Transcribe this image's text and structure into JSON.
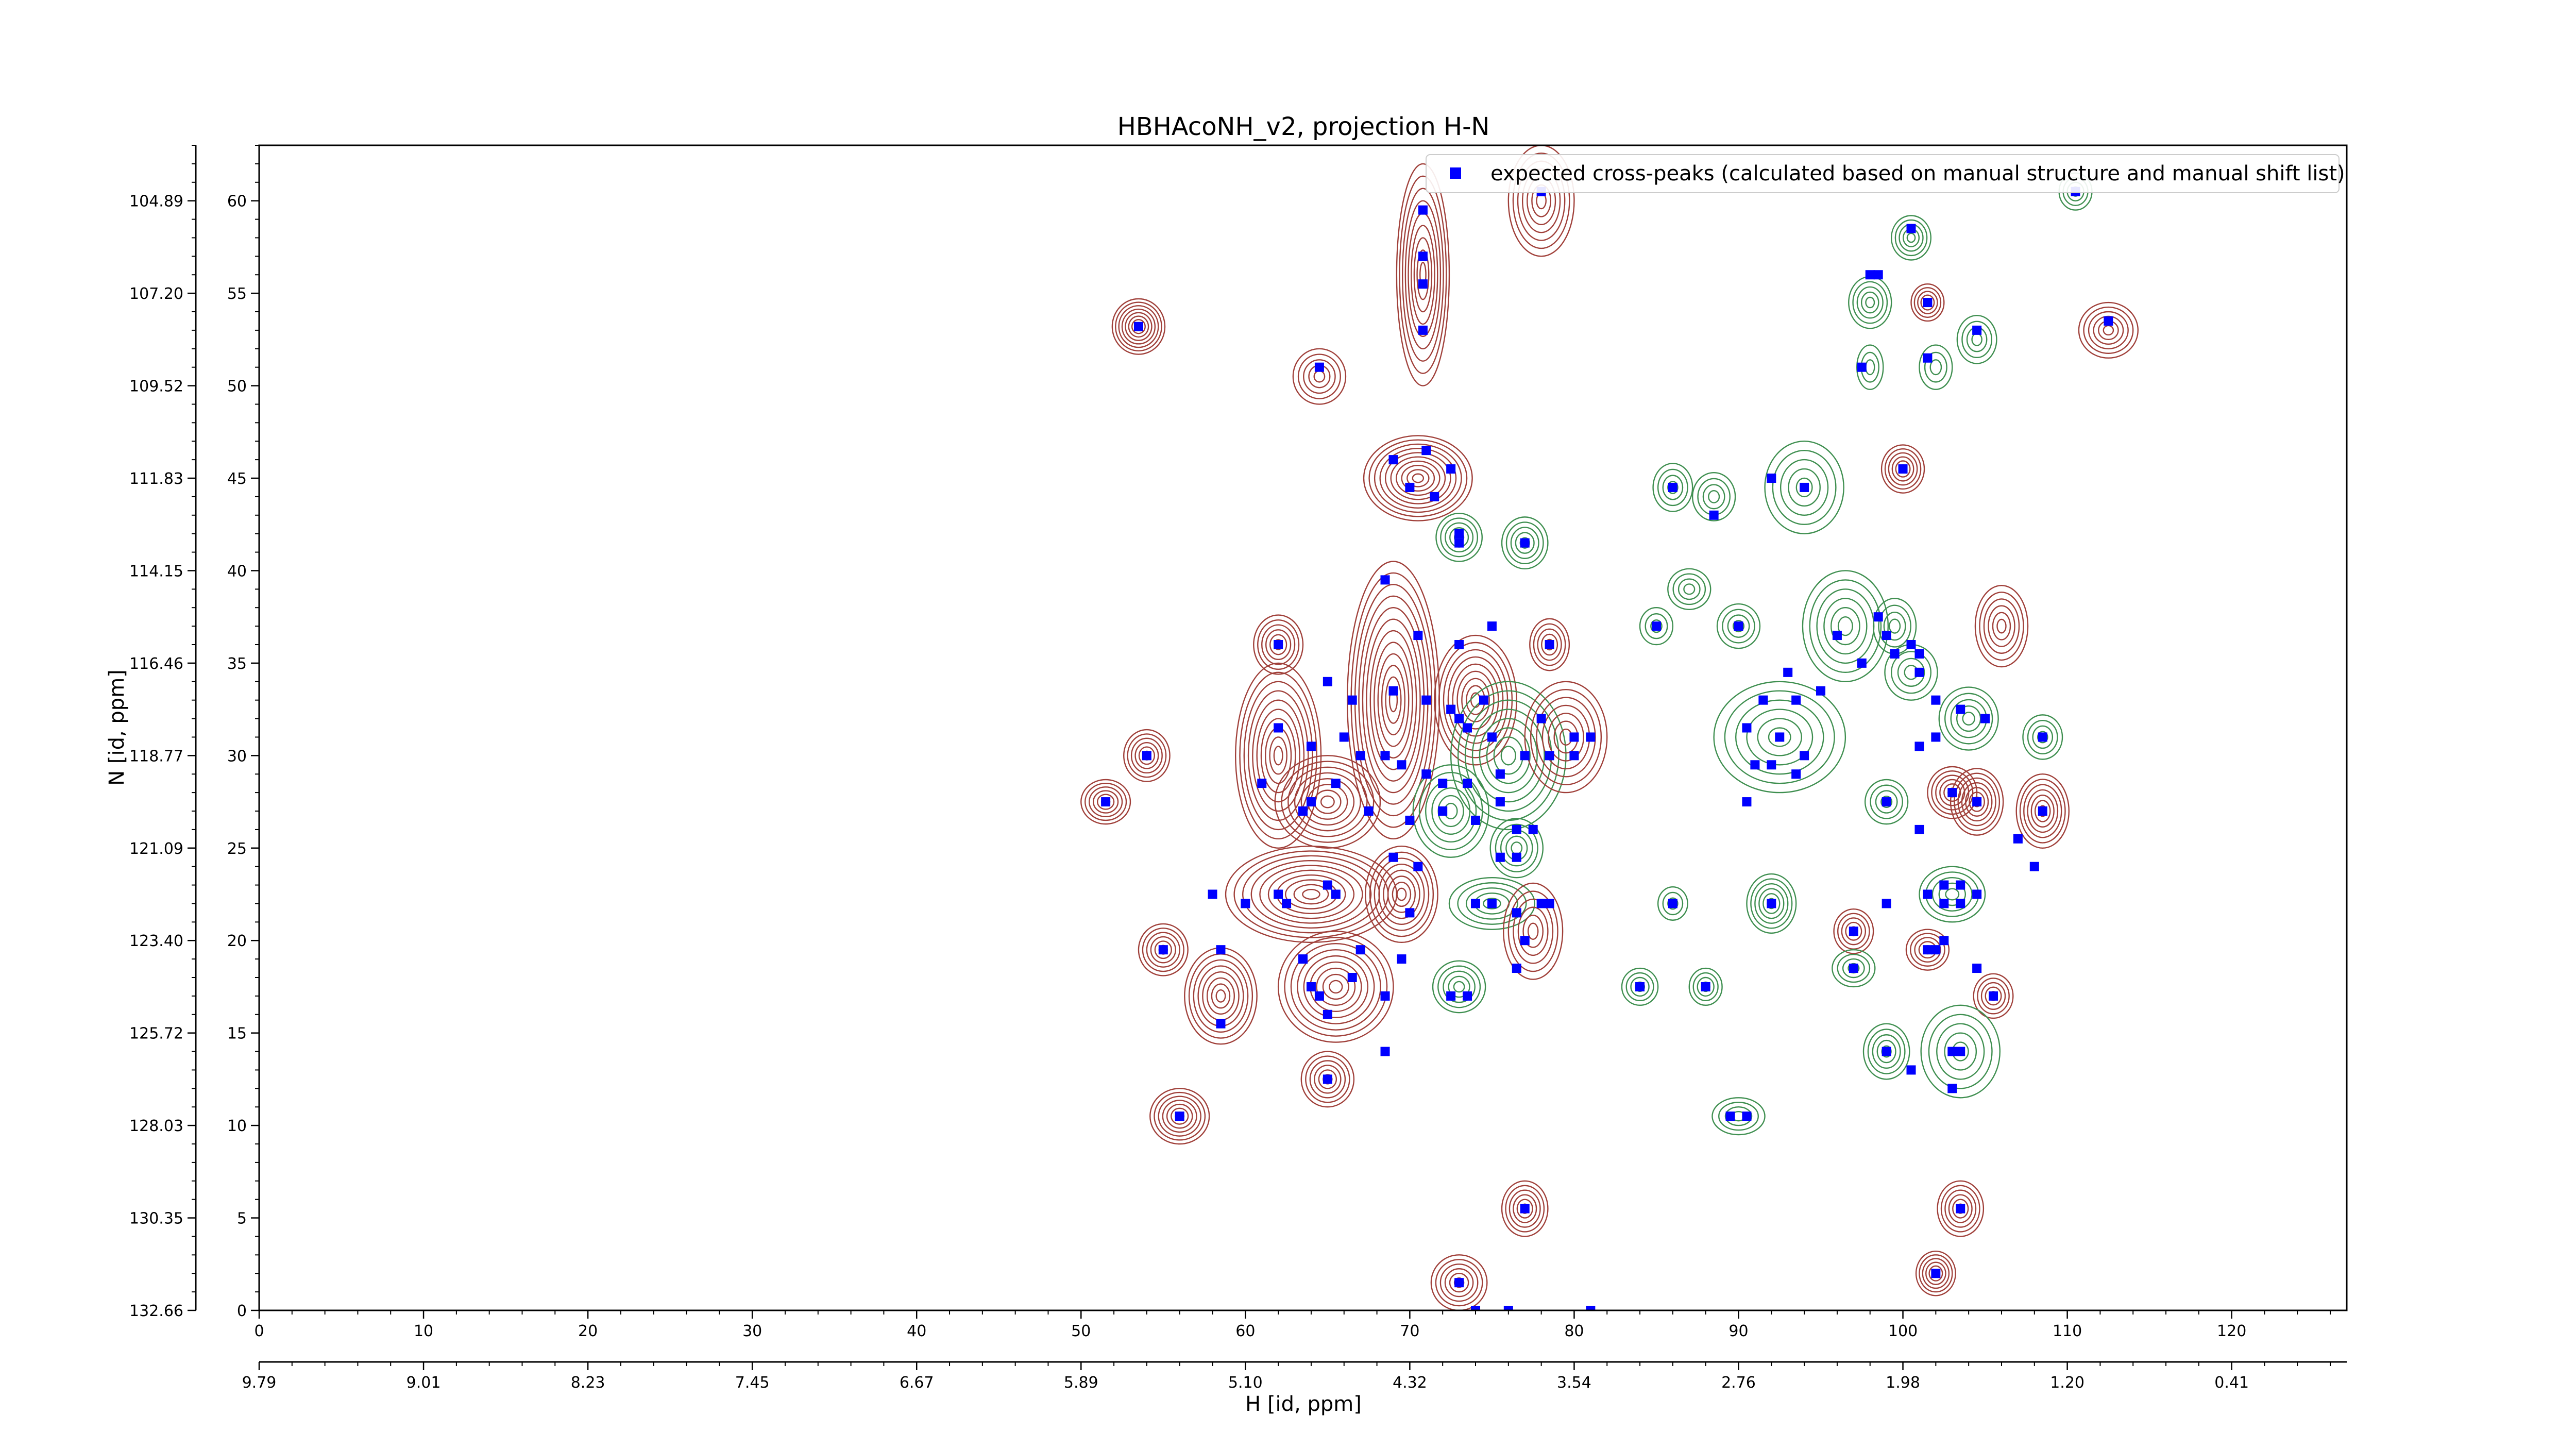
{
  "chart_data": {
    "type": "scatter",
    "title": "HBHAcoNH_v2, projection H-N",
    "xlabel": "H [id, ppm]",
    "ylabel": "N [id, ppm]",
    "xlim": [
      0,
      127
    ],
    "ylim": [
      0,
      63
    ],
    "x_ticks": [
      0,
      10,
      20,
      30,
      40,
      50,
      60,
      70,
      80,
      90,
      100,
      110,
      120
    ],
    "y_ticks": [
      0,
      5,
      10,
      15,
      20,
      25,
      30,
      35,
      40,
      45,
      50,
      55,
      60
    ],
    "x_ppm_ticks": [
      "9.79",
      "9.01",
      "8.23",
      "7.45",
      "6.67",
      "5.89",
      "5.10",
      "4.32",
      "3.54",
      "2.76",
      "1.98",
      "1.20",
      "0.41"
    ],
    "y_ppm_ticks": [
      "132.66",
      "130.35",
      "128.03",
      "125.72",
      "123.40",
      "121.09",
      "118.77",
      "116.46",
      "114.15",
      "111.83",
      "109.52",
      "107.20",
      "104.89"
    ],
    "grid": false,
    "legend_position": "top-right",
    "legend_label": "expected cross-peaks (calculated based on manual structure and manual shift list)",
    "colors": {
      "positive_contour": "#a0403a",
      "negative_contour": "#3f8f50",
      "peak_marker": "#0000ff"
    },
    "contour_groups": [
      {
        "sign": "pos",
        "x": 53.5,
        "y": 53.2,
        "rx": 1.6,
        "ry": 1.5,
        "levels": 8
      },
      {
        "sign": "pos",
        "x": 70.8,
        "y": 56.0,
        "rx": 1.6,
        "ry": 6.0,
        "levels": 9
      },
      {
        "sign": "pos",
        "x": 78.0,
        "y": 60.0,
        "rx": 2.0,
        "ry": 3.0,
        "levels": 7
      },
      {
        "sign": "pos",
        "x": 64.5,
        "y": 50.5,
        "rx": 1.6,
        "ry": 1.5,
        "levels": 5
      },
      {
        "sign": "pos",
        "x": 70.5,
        "y": 45.0,
        "rx": 3.3,
        "ry": 2.3,
        "levels": 10
      },
      {
        "sign": "neg",
        "x": 73.0,
        "y": 41.8,
        "rx": 1.4,
        "ry": 1.3,
        "levels": 5
      },
      {
        "sign": "neg",
        "x": 77.0,
        "y": 41.5,
        "rx": 1.4,
        "ry": 1.4,
        "levels": 5
      },
      {
        "sign": "pos",
        "x": 62.0,
        "y": 30.0,
        "rx": 2.6,
        "ry": 5.0,
        "levels": 10
      },
      {
        "sign": "pos",
        "x": 69.0,
        "y": 33.0,
        "rx": 2.8,
        "ry": 7.5,
        "levels": 12
      },
      {
        "sign": "pos",
        "x": 74.0,
        "y": 33.0,
        "rx": 2.5,
        "ry": 3.5,
        "levels": 9
      },
      {
        "sign": "neg",
        "x": 76.0,
        "y": 30.0,
        "rx": 3.5,
        "ry": 4.0,
        "levels": 8
      },
      {
        "sign": "pos",
        "x": 79.5,
        "y": 31.0,
        "rx": 2.5,
        "ry": 3.0,
        "levels": 7
      },
      {
        "sign": "neg",
        "x": 72.5,
        "y": 27.0,
        "rx": 2.3,
        "ry": 2.5,
        "levels": 6
      },
      {
        "sign": "pos",
        "x": 65.0,
        "y": 27.5,
        "rx": 3.2,
        "ry": 2.5,
        "levels": 8
      },
      {
        "sign": "pos",
        "x": 62.0,
        "y": 36.0,
        "rx": 1.5,
        "ry": 1.6,
        "levels": 6
      },
      {
        "sign": "pos",
        "x": 54.0,
        "y": 30.0,
        "rx": 1.4,
        "ry": 1.4,
        "levels": 6
      },
      {
        "sign": "pos",
        "x": 51.5,
        "y": 27.5,
        "rx": 1.5,
        "ry": 1.2,
        "levels": 6
      },
      {
        "sign": "pos",
        "x": 78.5,
        "y": 36.0,
        "rx": 1.2,
        "ry": 1.4,
        "levels": 5
      },
      {
        "sign": "pos",
        "x": 64.0,
        "y": 22.5,
        "rx": 5.2,
        "ry": 2.6,
        "levels": 10
      },
      {
        "sign": "pos",
        "x": 55.0,
        "y": 19.5,
        "rx": 1.5,
        "ry": 1.4,
        "levels": 6
      },
      {
        "sign": "pos",
        "x": 58.5,
        "y": 17.0,
        "rx": 2.2,
        "ry": 2.6,
        "levels": 8
      },
      {
        "sign": "pos",
        "x": 65.5,
        "y": 17.5,
        "rx": 3.5,
        "ry": 3.0,
        "levels": 9
      },
      {
        "sign": "pos",
        "x": 69.5,
        "y": 22.5,
        "rx": 2.2,
        "ry": 2.6,
        "levels": 8
      },
      {
        "sign": "neg",
        "x": 73.0,
        "y": 17.5,
        "rx": 1.6,
        "ry": 1.4,
        "levels": 5
      },
      {
        "sign": "neg",
        "x": 75.0,
        "y": 22.0,
        "rx": 2.6,
        "ry": 1.4,
        "levels": 5
      },
      {
        "sign": "pos",
        "x": 77.5,
        "y": 20.5,
        "rx": 1.8,
        "ry": 2.6,
        "levels": 6
      },
      {
        "sign": "neg",
        "x": 76.5,
        "y": 25.0,
        "rx": 1.6,
        "ry": 1.6,
        "levels": 5
      },
      {
        "sign": "pos",
        "x": 65.0,
        "y": 12.5,
        "rx": 1.6,
        "ry": 1.5,
        "levels": 6
      },
      {
        "sign": "pos",
        "x": 56.0,
        "y": 10.5,
        "rx": 1.8,
        "ry": 1.5,
        "levels": 7
      },
      {
        "sign": "pos",
        "x": 77.0,
        "y": 5.5,
        "rx": 1.4,
        "ry": 1.5,
        "levels": 6
      },
      {
        "sign": "pos",
        "x": 73.0,
        "y": 1.5,
        "rx": 1.7,
        "ry": 1.5,
        "levels": 6
      },
      {
        "sign": "neg",
        "x": 87.0,
        "y": 39.0,
        "rx": 1.3,
        "ry": 1.1,
        "levels": 4
      },
      {
        "sign": "neg",
        "x": 85.0,
        "y": 37.0,
        "rx": 1.0,
        "ry": 1.0,
        "levels": 3
      },
      {
        "sign": "neg",
        "x": 90.0,
        "y": 37.0,
        "rx": 1.3,
        "ry": 1.2,
        "levels": 4
      },
      {
        "sign": "neg",
        "x": 96.5,
        "y": 37.0,
        "rx": 2.6,
        "ry": 3.0,
        "levels": 6
      },
      {
        "sign": "neg",
        "x": 92.5,
        "y": 31.0,
        "rx": 4.0,
        "ry": 3.0,
        "levels": 6
      },
      {
        "sign": "neg",
        "x": 88.5,
        "y": 44.0,
        "rx": 1.3,
        "ry": 1.3,
        "levels": 4
      },
      {
        "sign": "neg",
        "x": 86.0,
        "y": 44.5,
        "rx": 1.2,
        "ry": 1.3,
        "levels": 4
      },
      {
        "sign": "neg",
        "x": 94.0,
        "y": 44.5,
        "rx": 2.4,
        "ry": 2.5,
        "levels": 5
      },
      {
        "sign": "pos",
        "x": 100.0,
        "y": 45.5,
        "rx": 1.3,
        "ry": 1.3,
        "levels": 6
      },
      {
        "sign": "neg",
        "x": 99.5,
        "y": 37.0,
        "rx": 1.3,
        "ry": 1.5,
        "levels": 4
      },
      {
        "sign": "neg",
        "x": 100.5,
        "y": 34.5,
        "rx": 1.6,
        "ry": 1.5,
        "levels": 4
      },
      {
        "sign": "neg",
        "x": 104.0,
        "y": 32.0,
        "rx": 1.8,
        "ry": 1.7,
        "levels": 5
      },
      {
        "sign": "neg",
        "x": 108.5,
        "y": 31.0,
        "rx": 1.2,
        "ry": 1.2,
        "levels": 4
      },
      {
        "sign": "pos",
        "x": 106.0,
        "y": 37.0,
        "rx": 1.6,
        "ry": 2.2,
        "levels": 6
      },
      {
        "sign": "pos",
        "x": 103.0,
        "y": 28.0,
        "rx": 1.5,
        "ry": 1.4,
        "levels": 6
      },
      {
        "sign": "pos",
        "x": 104.5,
        "y": 27.5,
        "rx": 1.6,
        "ry": 1.8,
        "levels": 7
      },
      {
        "sign": "pos",
        "x": 108.5,
        "y": 27.0,
        "rx": 1.6,
        "ry": 2.0,
        "levels": 7
      },
      {
        "sign": "neg",
        "x": 99.0,
        "y": 27.5,
        "rx": 1.3,
        "ry": 1.2,
        "levels": 4
      },
      {
        "sign": "neg",
        "x": 103.0,
        "y": 22.5,
        "rx": 2.0,
        "ry": 1.5,
        "levels": 5
      },
      {
        "sign": "neg",
        "x": 92.0,
        "y": 22.0,
        "rx": 1.5,
        "ry": 1.6,
        "levels": 6
      },
      {
        "sign": "neg",
        "x": 86.0,
        "y": 22.0,
        "rx": 0.9,
        "ry": 0.9,
        "levels": 3
      },
      {
        "sign": "pos",
        "x": 97.0,
        "y": 20.5,
        "rx": 1.2,
        "ry": 1.2,
        "levels": 5
      },
      {
        "sign": "pos",
        "x": 101.5,
        "y": 19.5,
        "rx": 1.3,
        "ry": 1.1,
        "levels": 5
      },
      {
        "sign": "pos",
        "x": 105.5,
        "y": 17.0,
        "rx": 1.2,
        "ry": 1.2,
        "levels": 5
      },
      {
        "sign": "neg",
        "x": 97.0,
        "y": 18.5,
        "rx": 1.3,
        "ry": 1.0,
        "levels": 4
      },
      {
        "sign": "neg",
        "x": 84.0,
        "y": 17.5,
        "rx": 1.1,
        "ry": 1.0,
        "levels": 4
      },
      {
        "sign": "neg",
        "x": 88.0,
        "y": 17.5,
        "rx": 1.0,
        "ry": 1.0,
        "levels": 4
      },
      {
        "sign": "neg",
        "x": 99.0,
        "y": 14.0,
        "rx": 1.4,
        "ry": 1.5,
        "levels": 5
      },
      {
        "sign": "neg",
        "x": 103.5,
        "y": 14.0,
        "rx": 2.4,
        "ry": 2.5,
        "levels": 5
      },
      {
        "sign": "neg",
        "x": 90.0,
        "y": 10.5,
        "rx": 1.6,
        "ry": 1.0,
        "levels": 4
      },
      {
        "sign": "pos",
        "x": 103.5,
        "y": 5.5,
        "rx": 1.4,
        "ry": 1.5,
        "levels": 6
      },
      {
        "sign": "pos",
        "x": 102.0,
        "y": 2.0,
        "rx": 1.2,
        "ry": 1.2,
        "levels": 6
      },
      {
        "sign": "pos",
        "x": 101.5,
        "y": 54.5,
        "rx": 1.0,
        "ry": 1.0,
        "levels": 5
      },
      {
        "sign": "neg",
        "x": 98.0,
        "y": 54.5,
        "rx": 1.3,
        "ry": 1.4,
        "levels": 5
      },
      {
        "sign": "neg",
        "x": 100.5,
        "y": 58.0,
        "rx": 1.2,
        "ry": 1.2,
        "levels": 5
      },
      {
        "sign": "neg",
        "x": 104.5,
        "y": 52.5,
        "rx": 1.2,
        "ry": 1.3,
        "levels": 4
      },
      {
        "sign": "neg",
        "x": 98.0,
        "y": 51.0,
        "rx": 0.8,
        "ry": 1.2,
        "levels": 3
      },
      {
        "sign": "neg",
        "x": 102.0,
        "y": 51.0,
        "rx": 1.0,
        "ry": 1.2,
        "levels": 3
      },
      {
        "sign": "pos",
        "x": 112.5,
        "y": 53.0,
        "rx": 1.8,
        "ry": 1.5,
        "levels": 6
      },
      {
        "sign": "neg",
        "x": 110.5,
        "y": 60.5,
        "rx": 1.0,
        "ry": 1.0,
        "levels": 4
      }
    ],
    "points": [
      [
        53.5,
        53.2
      ],
      [
        70.8,
        59.5
      ],
      [
        70.8,
        57.0
      ],
      [
        70.8,
        55.5
      ],
      [
        70.8,
        53.0
      ],
      [
        78.0,
        60.5
      ],
      [
        64.5,
        51.0
      ],
      [
        69.0,
        46.0
      ],
      [
        71.0,
        46.5
      ],
      [
        72.5,
        45.5
      ],
      [
        70.0,
        44.5
      ],
      [
        71.5,
        44.0
      ],
      [
        73.0,
        42.0
      ],
      [
        77.0,
        41.5
      ],
      [
        68.5,
        39.5
      ],
      [
        75.0,
        37.0
      ],
      [
        70.5,
        36.5
      ],
      [
        73.0,
        36.0
      ],
      [
        62.0,
        36.0
      ],
      [
        78.5,
        36.0
      ],
      [
        65.0,
        34.0
      ],
      [
        66.5,
        33.0
      ],
      [
        69.0,
        33.5
      ],
      [
        71.0,
        33.0
      ],
      [
        72.5,
        32.5
      ],
      [
        73.0,
        32.0
      ],
      [
        74.5,
        33.0
      ],
      [
        73.5,
        31.5
      ],
      [
        75.0,
        31.0
      ],
      [
        78.0,
        32.0
      ],
      [
        80.0,
        31.0
      ],
      [
        81.0,
        31.0
      ],
      [
        62.0,
        31.5
      ],
      [
        64.0,
        30.5
      ],
      [
        66.0,
        31.0
      ],
      [
        67.0,
        30.0
      ],
      [
        68.5,
        30.0
      ],
      [
        69.5,
        29.5
      ],
      [
        71.0,
        29.0
      ],
      [
        72.0,
        28.5
      ],
      [
        73.5,
        28.5
      ],
      [
        75.5,
        29.0
      ],
      [
        77.0,
        30.0
      ],
      [
        78.5,
        30.0
      ],
      [
        80.0,
        30.0
      ],
      [
        54.0,
        30.0
      ],
      [
        61.0,
        28.5
      ],
      [
        64.0,
        27.5
      ],
      [
        65.5,
        28.5
      ],
      [
        67.5,
        27.0
      ],
      [
        70.0,
        26.5
      ],
      [
        72.0,
        27.0
      ],
      [
        74.0,
        26.5
      ],
      [
        75.5,
        27.5
      ],
      [
        76.5,
        26.0
      ],
      [
        77.5,
        26.0
      ],
      [
        51.5,
        27.5
      ],
      [
        63.5,
        27.0
      ],
      [
        69.0,
        24.5
      ],
      [
        70.5,
        24.0
      ],
      [
        75.5,
        24.5
      ],
      [
        76.5,
        24.5
      ],
      [
        58.0,
        22.5
      ],
      [
        60.0,
        22.0
      ],
      [
        62.0,
        22.5
      ],
      [
        62.5,
        22.0
      ],
      [
        65.0,
        23.0
      ],
      [
        65.5,
        22.5
      ],
      [
        70.0,
        21.5
      ],
      [
        74.0,
        22.0
      ],
      [
        75.0,
        22.0
      ],
      [
        78.0,
        22.0
      ],
      [
        78.5,
        22.0
      ],
      [
        76.5,
        21.5
      ],
      [
        55.0,
        19.5
      ],
      [
        58.5,
        19.5
      ],
      [
        63.5,
        19.0
      ],
      [
        67.0,
        19.5
      ],
      [
        69.5,
        19.0
      ],
      [
        77.0,
        20.0
      ],
      [
        64.0,
        17.5
      ],
      [
        64.5,
        17.0
      ],
      [
        66.5,
        18.0
      ],
      [
        68.5,
        17.0
      ],
      [
        72.5,
        17.0
      ],
      [
        73.5,
        17.0
      ],
      [
        76.5,
        18.5
      ],
      [
        58.5,
        15.5
      ],
      [
        65.0,
        16.0
      ],
      [
        68.5,
        14.0
      ],
      [
        65.0,
        12.5
      ],
      [
        56.0,
        10.5
      ],
      [
        77.0,
        5.5
      ],
      [
        73.0,
        1.5
      ],
      [
        86.0,
        44.5
      ],
      [
        88.5,
        43.0
      ],
      [
        94.0,
        44.5
      ],
      [
        92.0,
        45.0
      ],
      [
        100.0,
        45.5
      ],
      [
        73.0,
        41.5
      ],
      [
        85.0,
        37.0
      ],
      [
        90.0,
        37.0
      ],
      [
        96.0,
        36.5
      ],
      [
        98.5,
        37.5
      ],
      [
        99.0,
        36.5
      ],
      [
        99.5,
        35.5
      ],
      [
        100.5,
        36.0
      ],
      [
        101.0,
        35.5
      ],
      [
        101.0,
        34.5
      ],
      [
        97.5,
        35.0
      ],
      [
        93.0,
        34.5
      ],
      [
        91.5,
        33.0
      ],
      [
        93.5,
        33.0
      ],
      [
        95.0,
        33.5
      ],
      [
        90.5,
        31.5
      ],
      [
        92.5,
        31.0
      ],
      [
        94.0,
        30.0
      ],
      [
        91.0,
        29.5
      ],
      [
        92.0,
        29.5
      ],
      [
        93.5,
        29.0
      ],
      [
        90.5,
        27.5
      ],
      [
        102.0,
        33.0
      ],
      [
        103.5,
        32.5
      ],
      [
        105.0,
        32.0
      ],
      [
        102.0,
        31.0
      ],
      [
        101.0,
        30.5
      ],
      [
        108.5,
        31.0
      ],
      [
        103.0,
        28.0
      ],
      [
        104.5,
        27.5
      ],
      [
        108.5,
        27.0
      ],
      [
        99.0,
        27.5
      ],
      [
        101.0,
        26.0
      ],
      [
        107.0,
        25.5
      ],
      [
        108.0,
        24.0
      ],
      [
        102.5,
        23.0
      ],
      [
        103.5,
        23.0
      ],
      [
        101.5,
        22.5
      ],
      [
        102.5,
        22.0
      ],
      [
        103.5,
        22.0
      ],
      [
        99.0,
        22.0
      ],
      [
        104.5,
        22.5
      ],
      [
        92.0,
        22.0
      ],
      [
        86.0,
        22.0
      ],
      [
        97.0,
        20.5
      ],
      [
        101.5,
        19.5
      ],
      [
        102.0,
        19.5
      ],
      [
        102.5,
        20.0
      ],
      [
        104.5,
        18.5
      ],
      [
        105.5,
        17.0
      ],
      [
        97.0,
        18.5
      ],
      [
        84.0,
        17.5
      ],
      [
        88.0,
        17.5
      ],
      [
        99.0,
        14.0
      ],
      [
        103.0,
        14.0
      ],
      [
        103.5,
        14.0
      ],
      [
        100.5,
        13.0
      ],
      [
        103.0,
        12.0
      ],
      [
        89.5,
        10.5
      ],
      [
        90.5,
        10.5
      ],
      [
        103.5,
        5.5
      ],
      [
        102.0,
        2.0
      ],
      [
        101.5,
        54.5
      ],
      [
        98.0,
        56.0
      ],
      [
        98.5,
        56.0
      ],
      [
        100.5,
        58.5
      ],
      [
        104.5,
        53.0
      ],
      [
        97.5,
        51.0
      ],
      [
        101.5,
        51.5
      ],
      [
        112.5,
        53.5
      ],
      [
        110.5,
        60.5
      ],
      [
        74.0,
        0.0
      ],
      [
        76.0,
        0.0
      ],
      [
        81.0,
        0.0
      ]
    ]
  }
}
